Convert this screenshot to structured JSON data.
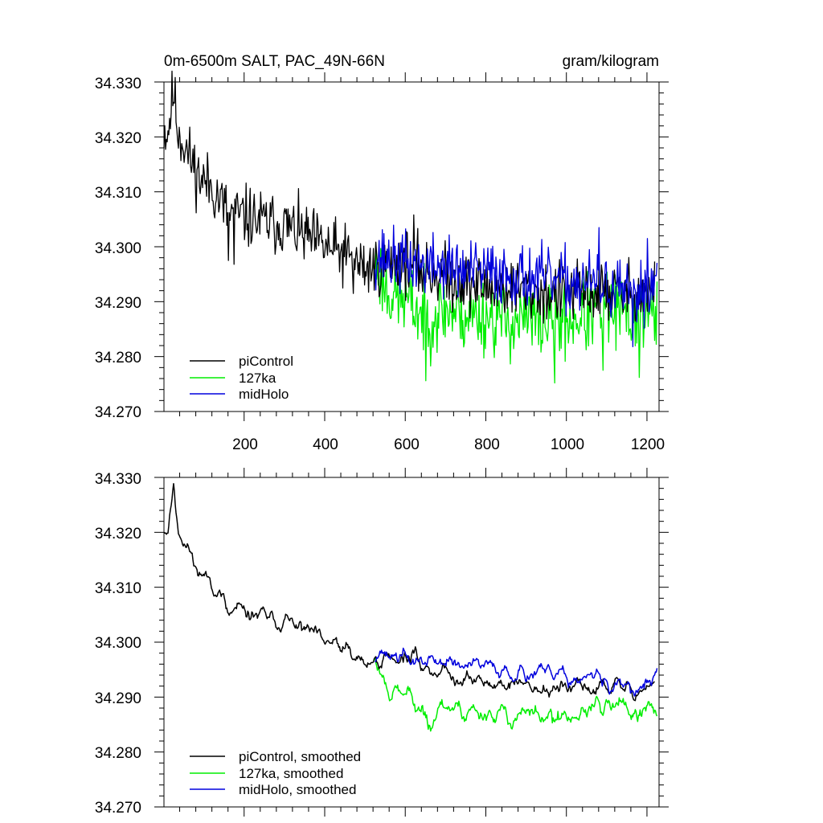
{
  "figure": {
    "title_left": "0m-6500m SALT, PAC_49N-66N",
    "title_right": "gram/kilogram"
  },
  "colors": {
    "piControl": "#000000",
    "127ka": "#00ee00",
    "midHolo": "#0000dd",
    "axes": "#000000",
    "background": "#ffffff"
  },
  "chart_data": [
    {
      "id": "raw",
      "type": "line",
      "title": "0m-6500m SALT, PAC_49N-66N",
      "units": "gram/kilogram",
      "xlabel": "",
      "ylabel": "",
      "xlim": [
        1,
        1230
      ],
      "ylim": [
        34.27,
        34.33
      ],
      "xticks": [
        200,
        400,
        600,
        800,
        1000,
        1200
      ],
      "xtick_labels": [
        "200",
        "400",
        "600",
        "800",
        "1000",
        "1200"
      ],
      "yticks": [
        34.27,
        34.28,
        34.29,
        34.3,
        34.31,
        34.32,
        34.33
      ],
      "ytick_labels": [
        "34.270",
        "34.280",
        "34.290",
        "34.300",
        "34.310",
        "34.320",
        "34.330"
      ],
      "legend": "bottom-left",
      "series": [
        {
          "name": "piControl",
          "color_key": "piControl",
          "x_start": 1,
          "x_end": 1220,
          "anchors": [
            [
              1,
              34.3215
            ],
            [
              10,
              34.3205
            ],
            [
              25,
              34.3285
            ],
            [
              35,
              34.3215
            ],
            [
              60,
              34.317
            ],
            [
              90,
              34.3125
            ],
            [
              120,
              34.311
            ],
            [
              160,
              34.306
            ],
            [
              200,
              34.3055
            ],
            [
              250,
              34.3045
            ],
            [
              300,
              34.304
            ],
            [
              350,
              34.302
            ],
            [
              400,
              34.3
            ],
            [
              450,
              34.2985
            ],
            [
              500,
              34.296
            ],
            [
              550,
              34.297
            ],
            [
              600,
              34.2975
            ],
            [
              650,
              34.2955
            ],
            [
              700,
              34.2945
            ],
            [
              750,
              34.2935
            ],
            [
              800,
              34.2925
            ],
            [
              850,
              34.2925
            ],
            [
              900,
              34.292
            ],
            [
              950,
              34.2915
            ],
            [
              1000,
              34.2915
            ],
            [
              1050,
              34.2915
            ],
            [
              1100,
              34.292
            ],
            [
              1150,
              34.2915
            ],
            [
              1200,
              34.2915
            ],
            [
              1220,
              34.292
            ]
          ],
          "raw_noise": 0.0028,
          "smooth_noise": 0.0014,
          "seed": 11,
          "spikes": [
            [
              160,
              34.2975
            ],
            [
              175,
              34.2968
            ],
            [
              470,
              34.2915
            ],
            [
              620,
              34.3058
            ]
          ]
        },
        {
          "name": "127ka",
          "color_key": "127ka",
          "x_start": 525,
          "x_end": 1225,
          "anchors": [
            [
              525,
              34.297
            ],
            [
              560,
              34.2915
            ],
            [
              600,
              34.2905
            ],
            [
              650,
              34.287
            ],
            [
              700,
              34.2885
            ],
            [
              750,
              34.2875
            ],
            [
              800,
              34.2875
            ],
            [
              850,
              34.2865
            ],
            [
              900,
              34.2865
            ],
            [
              950,
              34.2865
            ],
            [
              1000,
              34.2865
            ],
            [
              1050,
              34.2875
            ],
            [
              1100,
              34.2885
            ],
            [
              1150,
              34.2875
            ],
            [
              1200,
              34.2885
            ],
            [
              1225,
              34.286
            ]
          ],
          "raw_noise": 0.0035,
          "smooth_noise": 0.0017,
          "seed": 23,
          "spikes": [
            [
              650,
              34.2756
            ],
            [
              970,
              34.2752
            ],
            [
              1090,
              34.2775
            ],
            [
              1180,
              34.2762
            ]
          ]
        },
        {
          "name": "midHolo",
          "color_key": "midHolo",
          "x_start": 525,
          "x_end": 1225,
          "anchors": [
            [
              525,
              34.2985
            ],
            [
              600,
              34.297
            ],
            [
              650,
              34.2965
            ],
            [
              700,
              34.2965
            ],
            [
              750,
              34.2955
            ],
            [
              800,
              34.2955
            ],
            [
              850,
              34.295
            ],
            [
              900,
              34.2945
            ],
            [
              950,
              34.294
            ],
            [
              1000,
              34.2935
            ],
            [
              1050,
              34.2935
            ],
            [
              1100,
              34.2925
            ],
            [
              1150,
              34.291
            ],
            [
              1200,
              34.2925
            ],
            [
              1225,
              34.2945
            ]
          ],
          "raw_noise": 0.0028,
          "smooth_noise": 0.0013,
          "seed": 37,
          "spikes": [
            [
              1080,
              34.3035
            ],
            [
              1200,
              34.3015
            ],
            [
              1165,
              34.2818
            ]
          ]
        }
      ]
    },
    {
      "id": "smoothed",
      "type": "line",
      "title": "",
      "xlim": [
        1,
        1230
      ],
      "ylim": [
        34.27,
        34.33
      ],
      "xticks": [
        200,
        400,
        600,
        800,
        1000,
        1200
      ],
      "yticks": [
        34.27,
        34.28,
        34.29,
        34.3,
        34.31,
        34.32,
        34.33
      ],
      "ytick_labels": [
        "34.270",
        "34.280",
        "34.290",
        "34.300",
        "34.310",
        "34.320",
        "34.330"
      ],
      "legend": "bottom-left",
      "legend_labels": [
        "piControl, smoothed",
        "127ka, smoothed",
        "midHolo, smoothed"
      ]
    }
  ]
}
